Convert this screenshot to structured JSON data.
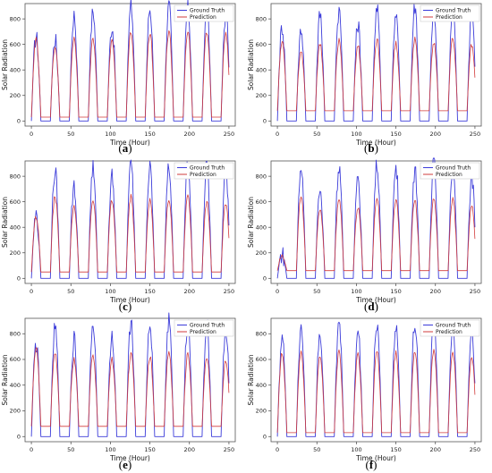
{
  "figure": {
    "panels": [
      "a",
      "b",
      "c",
      "d",
      "e",
      "f"
    ]
  },
  "chart_data": [
    {
      "type": "line",
      "label": "a",
      "xlabel": "Time (Hour)",
      "ylabel": "Solar Radiation",
      "xlim": [
        -8,
        258
      ],
      "ylim": [
        -40,
        920
      ],
      "xticks": [
        0,
        50,
        100,
        150,
        200,
        250
      ],
      "yticks": [
        0,
        200,
        400,
        600,
        800
      ],
      "legend_position": "top-right",
      "series": [
        {
          "name": "Ground Truth",
          "color": "#3b3bd9",
          "peaks": [
            660,
            640,
            830,
            860,
            740,
            900,
            880,
            900,
            880,
            870,
            840,
            890,
            860,
            840,
            650,
            760,
            800
          ],
          "base": 0
        },
        {
          "name": "Prediction",
          "color": "#d23b3b",
          "peaks": [
            640,
            590,
            650,
            640,
            640,
            700,
            690,
            700,
            700,
            700,
            690,
            700,
            680,
            690,
            600,
            620,
            640
          ],
          "base": 30
        }
      ]
    },
    {
      "type": "line",
      "label": "b",
      "xlabel": "Time (Hour)",
      "ylabel": "Solar Radiation",
      "xlim": [
        -8,
        258
      ],
      "ylim": [
        -40,
        920
      ],
      "xticks": [
        0,
        50,
        100,
        150,
        200,
        250
      ],
      "yticks": [
        0,
        200,
        400,
        600,
        800
      ],
      "legend_position": "top-right",
      "series": [
        {
          "name": "Ground Truth",
          "color": "#3b3bd9",
          "peaks": [
            740,
            720,
            840,
            870,
            760,
            880,
            860,
            900,
            870,
            860,
            850,
            900,
            870,
            700,
            740,
            820,
            800
          ],
          "base": 0
        },
        {
          "name": "Prediction",
          "color": "#d23b3b",
          "peaks": [
            620,
            550,
            600,
            630,
            590,
            640,
            610,
            640,
            620,
            650,
            600,
            610,
            590,
            560,
            540,
            600,
            580
          ],
          "base": 80
        }
      ]
    },
    {
      "type": "line",
      "label": "c",
      "xlabel": "Time (Hour)",
      "ylabel": "Solar Radiation",
      "xlim": [
        -8,
        258
      ],
      "ylim": [
        -40,
        920
      ],
      "xticks": [
        0,
        50,
        100,
        150,
        200,
        250
      ],
      "yticks": [
        0,
        200,
        400,
        600,
        800
      ],
      "legend_position": "top-right",
      "series": [
        {
          "name": "Ground Truth",
          "color": "#3b3bd9",
          "peaks": [
            500,
            840,
            720,
            870,
            800,
            890,
            860,
            870,
            900,
            880,
            830,
            860,
            700,
            840,
            820,
            810,
            760
          ],
          "base": 0
        },
        {
          "name": "Prediction",
          "color": "#d23b3b",
          "peaks": [
            480,
            640,
            560,
            620,
            610,
            640,
            620,
            620,
            650,
            600,
            580,
            590,
            480,
            450,
            470,
            500,
            460
          ],
          "base": 50
        }
      ]
    },
    {
      "type": "line",
      "label": "d",
      "xlabel": "Time (Hour)",
      "ylabel": "Solar Radiation",
      "xlim": [
        -8,
        258
      ],
      "ylim": [
        -40,
        920
      ],
      "xticks": [
        0,
        50,
        100,
        150,
        200,
        250
      ],
      "yticks": [
        0,
        200,
        400,
        600,
        800
      ],
      "legend_position": "top-right",
      "series": [
        {
          "name": "Ground Truth",
          "color": "#3b3bd9",
          "peaks": [
            190,
            860,
            700,
            880,
            760,
            890,
            860,
            850,
            900,
            880,
            800,
            870,
            700,
            840,
            760,
            810,
            820
          ],
          "base": 0
        },
        {
          "name": "Prediction",
          "color": "#d23b3b",
          "peaks": [
            170,
            640,
            540,
            620,
            560,
            630,
            620,
            610,
            630,
            620,
            560,
            580,
            480,
            470,
            460,
            490,
            480
          ],
          "base": 60
        }
      ]
    },
    {
      "type": "line",
      "label": "e",
      "xlabel": "Time (Hour)",
      "ylabel": "Solar Radiation",
      "xlim": [
        -8,
        258
      ],
      "ylim": [
        -40,
        920
      ],
      "xticks": [
        0,
        50,
        100,
        150,
        200,
        250
      ],
      "yticks": [
        0,
        200,
        400,
        600,
        800
      ],
      "legend_position": "top-right",
      "series": [
        {
          "name": "Ground Truth",
          "color": "#3b3bd9",
          "peaks": [
            720,
            840,
            760,
            880,
            800,
            880,
            860,
            900,
            890,
            880,
            830,
            870,
            730,
            840,
            780,
            820,
            600
          ],
          "base": 0
        },
        {
          "name": "Prediction",
          "color": "#d23b3b",
          "peaks": [
            690,
            640,
            600,
            630,
            600,
            640,
            620,
            650,
            640,
            620,
            600,
            610,
            520,
            500,
            510,
            540,
            480
          ],
          "base": 80
        }
      ]
    },
    {
      "type": "line",
      "label": "f",
      "xlabel": "Time (Hour)",
      "ylabel": "Solar Radiation",
      "xlim": [
        -8,
        258
      ],
      "ylim": [
        -40,
        920
      ],
      "xticks": [
        0,
        50,
        100,
        150,
        200,
        250
      ],
      "yticks": [
        0,
        200,
        400,
        600,
        800
      ],
      "legend_position": "top-right",
      "series": [
        {
          "name": "Ground Truth",
          "color": "#3b3bd9",
          "peaks": [
            760,
            860,
            780,
            880,
            820,
            890,
            860,
            880,
            900,
            870,
            830,
            880,
            760,
            880,
            800,
            840,
            820
          ],
          "base": 0
        },
        {
          "name": "Prediction",
          "color": "#d23b3b",
          "peaks": [
            650,
            660,
            620,
            660,
            640,
            670,
            650,
            670,
            680,
            660,
            620,
            650,
            600,
            660,
            620,
            640,
            600
          ],
          "base": 30
        }
      ]
    }
  ]
}
